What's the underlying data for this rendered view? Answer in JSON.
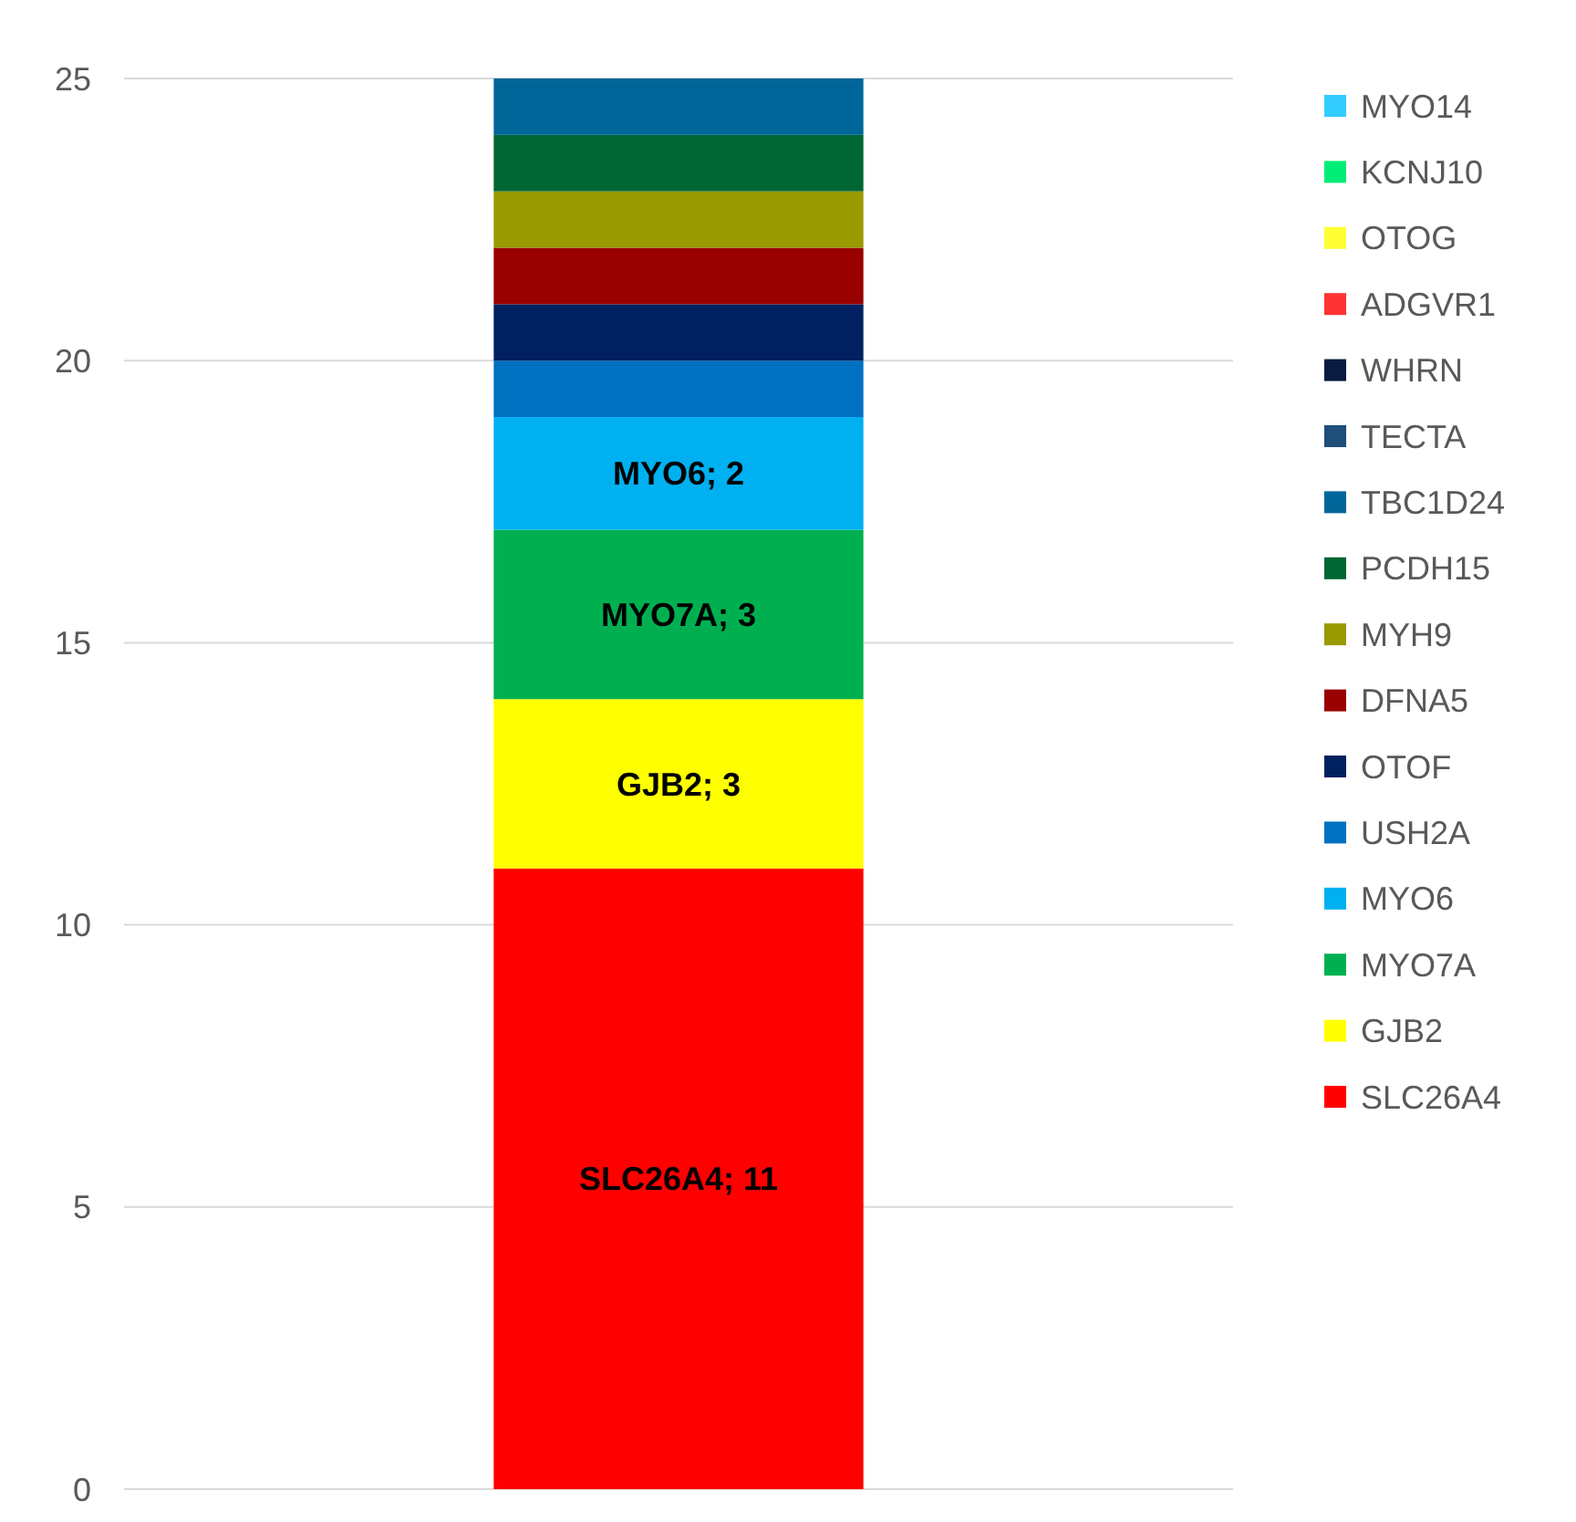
{
  "chart_data": {
    "type": "bar",
    "stacked": true,
    "categories": [
      null
    ],
    "ylim": [
      0,
      25
    ],
    "yticks": [
      0,
      5,
      10,
      15,
      20,
      25
    ],
    "grid": "y",
    "legend": "right",
    "series": [
      {
        "name": "SLC26A4",
        "color": "#ff0000",
        "values": [
          11
        ],
        "value_labels": [
          "SLC26A4; 11"
        ]
      },
      {
        "name": "GJB2",
        "color": "#ffff00",
        "values": [
          3
        ],
        "value_labels": [
          "GJB2; 3"
        ]
      },
      {
        "name": "MYO7A",
        "color": "#00b050",
        "values": [
          3
        ],
        "value_labels": [
          "MYO7A; 3"
        ]
      },
      {
        "name": "MYO6",
        "color": "#00b0f0",
        "values": [
          2
        ],
        "value_labels": [
          "MYO6; 2"
        ]
      },
      {
        "name": "USH2A",
        "color": "#0070c0",
        "values": [
          1
        ]
      },
      {
        "name": "OTOF",
        "color": "#002060",
        "values": [
          1
        ]
      },
      {
        "name": "DFNA5",
        "color": "#990000",
        "values": [
          1
        ]
      },
      {
        "name": "MYH9",
        "color": "#999900",
        "values": [
          1
        ]
      },
      {
        "name": "PCDH15",
        "color": "#006633",
        "values": [
          1
        ]
      },
      {
        "name": "TBC1D24",
        "color": "#006699",
        "values": [
          1
        ]
      },
      {
        "name": "TECTA",
        "color": "#1f4e79",
        "values": [
          null
        ]
      },
      {
        "name": "WHRN",
        "color": "#0a1a40",
        "values": [
          null
        ]
      },
      {
        "name": "ADGVR1",
        "color": "#ff3333",
        "values": [
          null
        ]
      },
      {
        "name": "OTOG",
        "color": "#ffff33",
        "values": [
          null
        ]
      },
      {
        "name": "KCNJ10",
        "color": "#00ee77",
        "values": [
          null
        ]
      },
      {
        "name": "MYO14",
        "color": "#33ccff",
        "values": [
          null
        ]
      }
    ]
  }
}
